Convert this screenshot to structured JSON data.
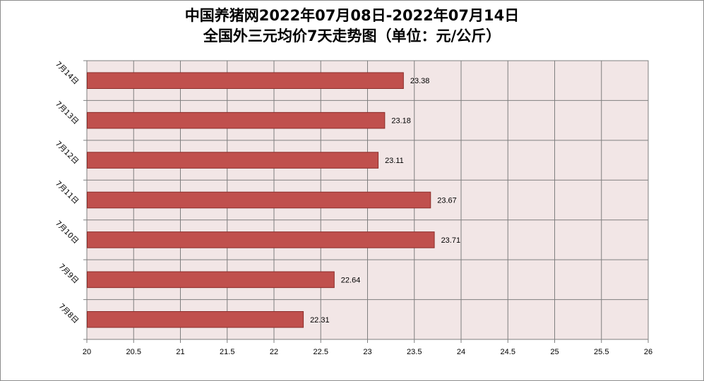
{
  "chart_data": {
    "type": "bar",
    "orientation": "horizontal",
    "title_line1": "中国养猪网2022年07月08日-2022年07月14日",
    "title_line2": "全国外三元均价7天走势图（单位：元/公斤）",
    "categories": [
      "7月8日",
      "7月9日",
      "7月10日",
      "7月11日",
      "7月12日",
      "7月13日",
      "7月14日"
    ],
    "values": [
      22.31,
      22.64,
      23.71,
      23.67,
      23.11,
      23.18,
      23.38
    ],
    "value_labels": [
      "22.31",
      "22.64",
      "23.71",
      "23.67",
      "23.11",
      "23.18",
      "23.38"
    ],
    "xlim": [
      20,
      26
    ],
    "xticks": [
      "20",
      "20.5",
      "21",
      "21.5",
      "22",
      "22.5",
      "23",
      "23.5",
      "24",
      "24.5",
      "25",
      "25.5",
      "26"
    ],
    "xlabel": "",
    "ylabel": "",
    "grid": true,
    "legend": false,
    "colors": {
      "bar": "#c0504d",
      "bar_border": "#8b2e2b",
      "plot_bg": "#f2e6e6",
      "grid": "#7f7f7f"
    }
  }
}
